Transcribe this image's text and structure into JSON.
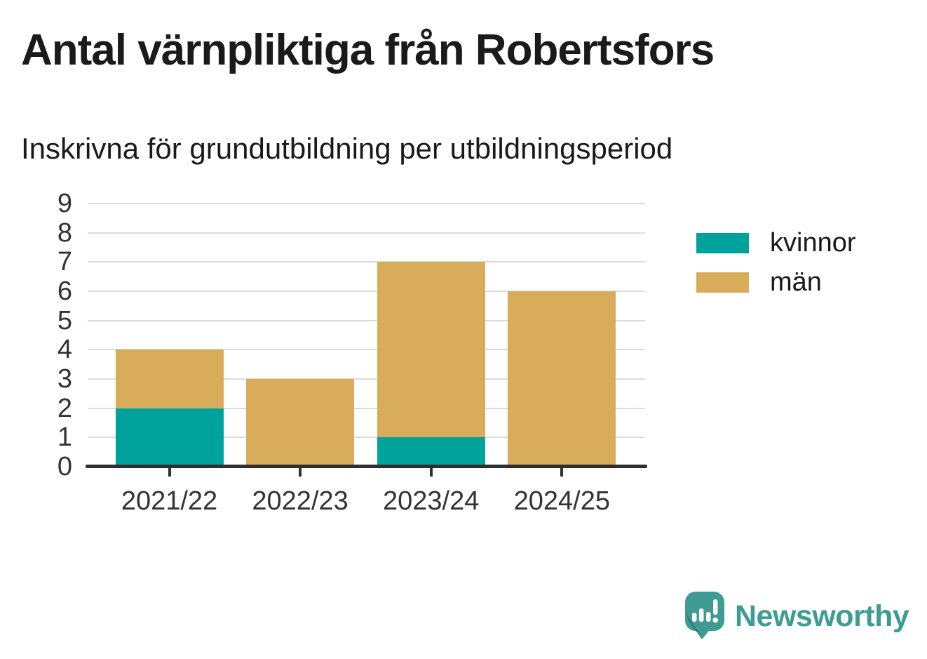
{
  "title": "Antal värnpliktiga från Robertsfors",
  "subtitle": "Inskrivna för grundutbildning per utbildningsperiod",
  "chart_data": {
    "type": "bar",
    "stacked": true,
    "title": "Antal värnpliktiga från Robertsfors",
    "subtitle": "Inskrivna för grundutbildning per utbildningsperiod",
    "categories": [
      "2021/22",
      "2022/23",
      "2023/24",
      "2024/25"
    ],
    "series": [
      {
        "name": "kvinnor",
        "color": "#00a39b",
        "values": [
          2,
          0,
          1,
          0
        ]
      },
      {
        "name": "män",
        "color": "#d9ac5c",
        "values": [
          2,
          3,
          6,
          6
        ]
      }
    ],
    "stack_totals": [
      4,
      3,
      7,
      6
    ],
    "xlabel": "",
    "ylabel": "",
    "ylim": [
      0,
      9
    ],
    "yticks": [
      0,
      1,
      2,
      3,
      4,
      5,
      6,
      7,
      8,
      9
    ],
    "grid": true,
    "legend_position": "right"
  },
  "branding": {
    "logo_text": "Newsworthy",
    "logo_color": "#3e9c95"
  },
  "colors": {
    "kvinnor": "#00a39b",
    "man": "#d9ac5c",
    "gridline": "#dbdbdb",
    "axis": "#2f2f2f",
    "tick_label": "#333333",
    "title_text": "#1a1a1a",
    "background": "#ffffff"
  }
}
